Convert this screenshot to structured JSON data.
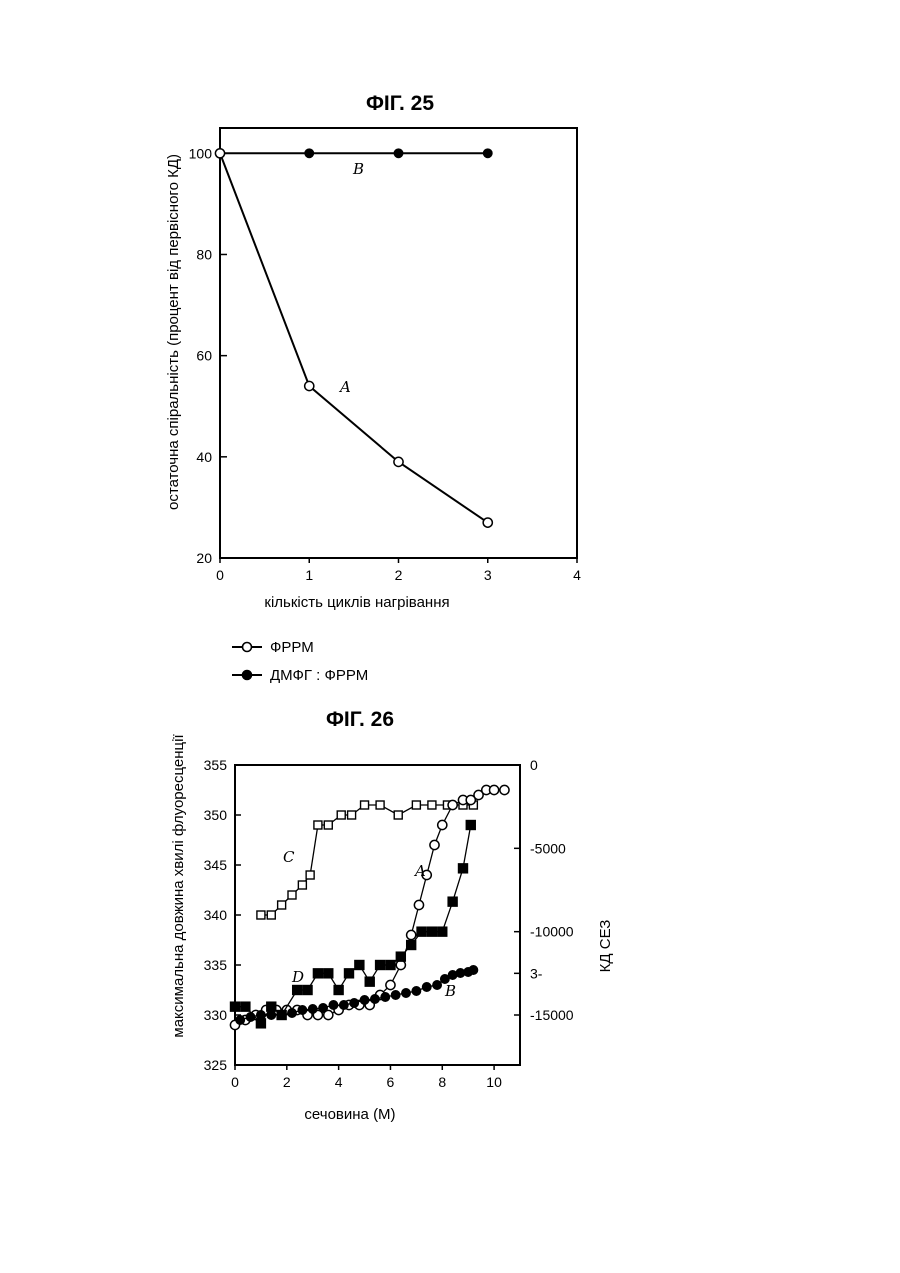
{
  "chart_data": [
    {
      "type": "line",
      "title": "ФІГ. 25",
      "xlabel": "кількість циклів нагрівання",
      "ylabel": "остаточна спіральність (процент від первісного КД)",
      "xlim": [
        0,
        4
      ],
      "ylim": [
        20,
        105
      ],
      "xticks": [
        0,
        1,
        2,
        3,
        4
      ],
      "yticks": [
        20,
        40,
        60,
        80,
        100
      ],
      "grid": false,
      "legend_position": "bottom",
      "series": [
        {
          "name": "ФРРМ",
          "label": "A",
          "marker": "open-circle",
          "x": [
            0,
            1,
            2,
            3
          ],
          "y": [
            100,
            54,
            39,
            27
          ]
        },
        {
          "name": "ДМФГ : ФРРМ",
          "label": "B",
          "marker": "filled-circle",
          "x": [
            0,
            1,
            2,
            3
          ],
          "y": [
            100,
            100,
            100,
            100
          ]
        }
      ]
    },
    {
      "type": "scatter",
      "title": "ФІГ. 26",
      "xlabel": "сечовина (М)",
      "ylabel": "максимальна довжина хвилі флуоресценції",
      "y2label": "КД СЕЗ",
      "xlim": [
        0,
        11
      ],
      "ylim": [
        325,
        355
      ],
      "y2lim": [
        -18000,
        0
      ],
      "xticks": [
        "0",
        "2",
        "4",
        "6",
        "8",
        "10"
      ],
      "xtick_values": [
        0,
        2,
        4,
        6,
        8,
        10
      ],
      "yticks": [
        325,
        330,
        335,
        340,
        345,
        350,
        355
      ],
      "y2ticks": [
        "0",
        "-5000",
        "-10000",
        "3-",
        "-15000"
      ],
      "y2tick_values": [
        0,
        -5000,
        -10000,
        -12500,
        -15000
      ],
      "grid": false,
      "series": [
        {
          "label": "C",
          "marker": "open-square",
          "x": [
            1.0,
            1.4,
            1.8,
            2.2,
            2.6,
            2.9,
            3.2,
            3.6,
            4.1,
            4.5,
            5.0,
            5.6,
            6.3,
            7.0,
            7.6,
            8.2,
            8.8,
            9.2
          ],
          "y": [
            340,
            340,
            341,
            342,
            343,
            344,
            349,
            349,
            350,
            350,
            351,
            351,
            350,
            351,
            351,
            351,
            351,
            351
          ]
        },
        {
          "label": "A",
          "marker": "open-circle",
          "x": [
            0,
            0.4,
            0.8,
            1.2,
            1.6,
            2.0,
            2.4,
            2.8,
            3.2,
            3.6,
            4.0,
            4.4,
            4.8,
            5.2,
            5.6,
            6.0,
            6.4,
            6.8,
            7.1,
            7.4,
            7.7,
            8.0,
            8.4,
            8.8,
            9.1,
            9.4,
            9.7,
            10.0,
            10.4
          ],
          "y": [
            329,
            329.5,
            330,
            330.5,
            330.5,
            330.5,
            330.5,
            330,
            330,
            330,
            330.5,
            331,
            331,
            331,
            332,
            333,
            335,
            338,
            341,
            344,
            347,
            349,
            351,
            351.5,
            351.5,
            352,
            352.5,
            352.5,
            352.5
          ]
        },
        {
          "label": "D",
          "marker": "filled-square",
          "x": [
            0,
            0.4,
            1.0,
            1.4,
            1.8,
            2.4,
            2.8,
            3.2,
            3.6,
            4.0,
            4.4,
            4.8,
            5.2,
            5.6,
            6.0,
            6.4,
            6.8,
            7.2,
            7.6,
            8.0,
            8.4,
            8.8,
            9.1
          ],
          "y": [
            -14500,
            -14500,
            -15500,
            -14500,
            -15000,
            -13500,
            -13500,
            -12500,
            -12500,
            -13500,
            -12500,
            -12000,
            -13000,
            -12000,
            -12000,
            -11500,
            -10800,
            -10000,
            -10000,
            -10000,
            -8200,
            -6200,
            -3600
          ]
        },
        {
          "label": "B",
          "marker": "filled-circle",
          "x": [
            0.2,
            0.6,
            1.0,
            1.4,
            1.8,
            2.2,
            2.6,
            3.0,
            3.4,
            3.8,
            4.2,
            4.6,
            5.0,
            5.4,
            5.8,
            6.2,
            6.6,
            7.0,
            7.4,
            7.8,
            8.1,
            8.4,
            8.7,
            9.0,
            9.2
          ],
          "y": [
            329.5,
            329.8,
            330,
            330,
            330,
            330.2,
            330.5,
            330.6,
            330.7,
            331,
            331,
            331.2,
            331.5,
            331.6,
            331.8,
            332,
            332.2,
            332.4,
            332.8,
            333,
            333.6,
            334,
            334.2,
            334.3,
            334.5
          ]
        }
      ]
    }
  ]
}
